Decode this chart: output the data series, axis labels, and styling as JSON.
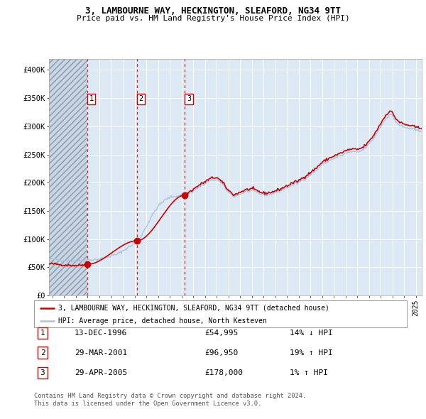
{
  "title": "3, LAMBOURNE WAY, HECKINGTON, SLEAFORD, NG34 9TT",
  "subtitle": "Price paid vs. HM Land Registry's House Price Index (HPI)",
  "legend_line1": "3, LAMBOURNE WAY, HECKINGTON, SLEAFORD, NG34 9TT (detached house)",
  "legend_line2": "HPI: Average price, detached house, North Kesteven",
  "footer1": "Contains HM Land Registry data © Crown copyright and database right 2024.",
  "footer2": "This data is licensed under the Open Government Licence v3.0.",
  "sale_dates": [
    "13-DEC-1996",
    "29-MAR-2001",
    "29-APR-2005"
  ],
  "sale_prices": [
    54995,
    96950,
    178000
  ],
  "sale_hpi_pct": [
    "14% ↓ HPI",
    "19% ↑ HPI",
    "1% ↑ HPI"
  ],
  "hpi_color": "#aac4e0",
  "price_color": "#cc0000",
  "bg_color": "#dce9f5",
  "grid_color": "#ffffff",
  "ylim": [
    0,
    420000
  ],
  "xlim_start": 1993.7,
  "xlim_end": 2025.5
}
